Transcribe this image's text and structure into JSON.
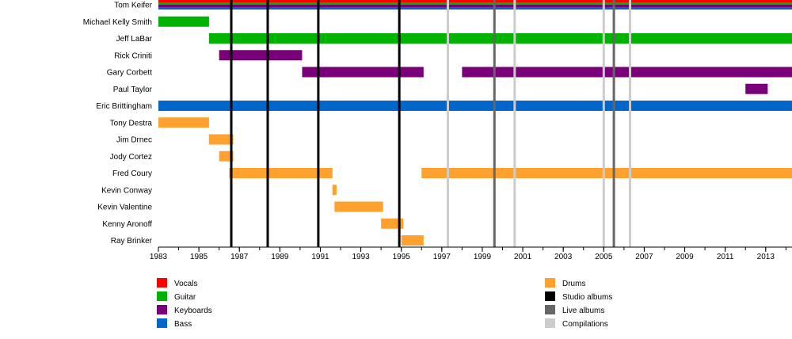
{
  "chart_data": {
    "type": "timeline",
    "x_range": [
      1983,
      2014.3
    ],
    "x_ticks": [
      "1983",
      "1985",
      "1987",
      "1989",
      "1991",
      "1993",
      "1995",
      "1997",
      "1999",
      "2001",
      "2003",
      "2005",
      "2007",
      "2009",
      "2011",
      "2013"
    ],
    "members": [
      {
        "name": "Tom Keifer",
        "bars": [
          {
            "role": "Vocals",
            "start": 1983,
            "end": 2014.3
          },
          {
            "role": "Guitar",
            "start": 1983,
            "end": 2014.3
          },
          {
            "role": "Keyboards",
            "start": 1983,
            "end": 2014.3
          },
          {
            "role": "Bass",
            "start": 1983,
            "end": 2014.3
          }
        ]
      },
      {
        "name": "Michael Kelly Smith",
        "bars": [
          {
            "role": "Guitar",
            "start": 1983,
            "end": 1985.5
          }
        ]
      },
      {
        "name": "Jeff LaBar",
        "bars": [
          {
            "role": "Guitar",
            "start": 1985.5,
            "end": 2014.3
          }
        ]
      },
      {
        "name": "Rick Criniti",
        "bars": [
          {
            "role": "Keyboards",
            "start": 1986.0,
            "end": 1990.1
          }
        ]
      },
      {
        "name": "Gary Corbett",
        "bars": [
          {
            "role": "Keyboards",
            "start": 1990.1,
            "end": 1996.1
          },
          {
            "role": "Keyboards",
            "start": 1998.0,
            "end": 2014.3
          }
        ]
      },
      {
        "name": "Paul Taylor",
        "bars": [
          {
            "role": "Keyboards",
            "start": 2012.0,
            "end": 2013.1
          }
        ]
      },
      {
        "name": "Eric Brittingham",
        "bars": [
          {
            "role": "Bass",
            "start": 1983,
            "end": 2014.3
          }
        ]
      },
      {
        "name": "Tony Destra",
        "bars": [
          {
            "role": "Drums",
            "start": 1983,
            "end": 1985.5
          }
        ]
      },
      {
        "name": "Jim Drnec",
        "bars": [
          {
            "role": "Drums",
            "start": 1985.5,
            "end": 1986.7
          }
        ]
      },
      {
        "name": "Jody Cortez",
        "bars": [
          {
            "role": "Drums",
            "start": 1986.0,
            "end": 1986.7
          }
        ]
      },
      {
        "name": "Fred Coury",
        "bars": [
          {
            "role": "Drums",
            "start": 1986.5,
            "end": 1991.6
          },
          {
            "role": "Drums",
            "start": 1996.0,
            "end": 2014.3
          }
        ]
      },
      {
        "name": "Kevin Conway",
        "bars": [
          {
            "role": "Drums",
            "start": 1991.6,
            "end": 1991.8
          }
        ]
      },
      {
        "name": "Kevin Valentine",
        "bars": [
          {
            "role": "Drums",
            "start": 1991.7,
            "end": 1994.1
          }
        ]
      },
      {
        "name": "Kenny Aronoff",
        "bars": [
          {
            "role": "Drums",
            "start": 1994.0,
            "end": 1995.1
          }
        ]
      },
      {
        "name": "Ray Brinker",
        "bars": [
          {
            "role": "Drums",
            "start": 1995.0,
            "end": 1996.1
          }
        ]
      }
    ],
    "events": [
      {
        "type": "Studio albums",
        "year": 1986.6
      },
      {
        "type": "Studio albums",
        "year": 1988.4
      },
      {
        "type": "Studio albums",
        "year": 1990.9
      },
      {
        "type": "Studio albums",
        "year": 1994.9
      },
      {
        "type": "Compilations",
        "year": 1997.3
      },
      {
        "type": "Live albums",
        "year": 1999.6
      },
      {
        "type": "Compilations",
        "year": 2000.6
      },
      {
        "type": "Compilations",
        "year": 2005.0
      },
      {
        "type": "Live albums",
        "year": 2005.5
      },
      {
        "type": "Compilations",
        "year": 2006.3
      }
    ],
    "legend_left": [
      {
        "label": "Vocals",
        "color": "#ff0000"
      },
      {
        "label": "Guitar",
        "color": "#00b300"
      },
      {
        "label": "Keyboards",
        "color": "#7a007a"
      },
      {
        "label": "Bass",
        "color": "#0066cc"
      }
    ],
    "legend_right": [
      {
        "label": "Drums",
        "color": "#ffa12e"
      },
      {
        "label": "Studio albums",
        "color": "#000000"
      },
      {
        "label": "Live albums",
        "color": "#666666"
      },
      {
        "label": "Compilations",
        "color": "#cccccc"
      }
    ]
  }
}
